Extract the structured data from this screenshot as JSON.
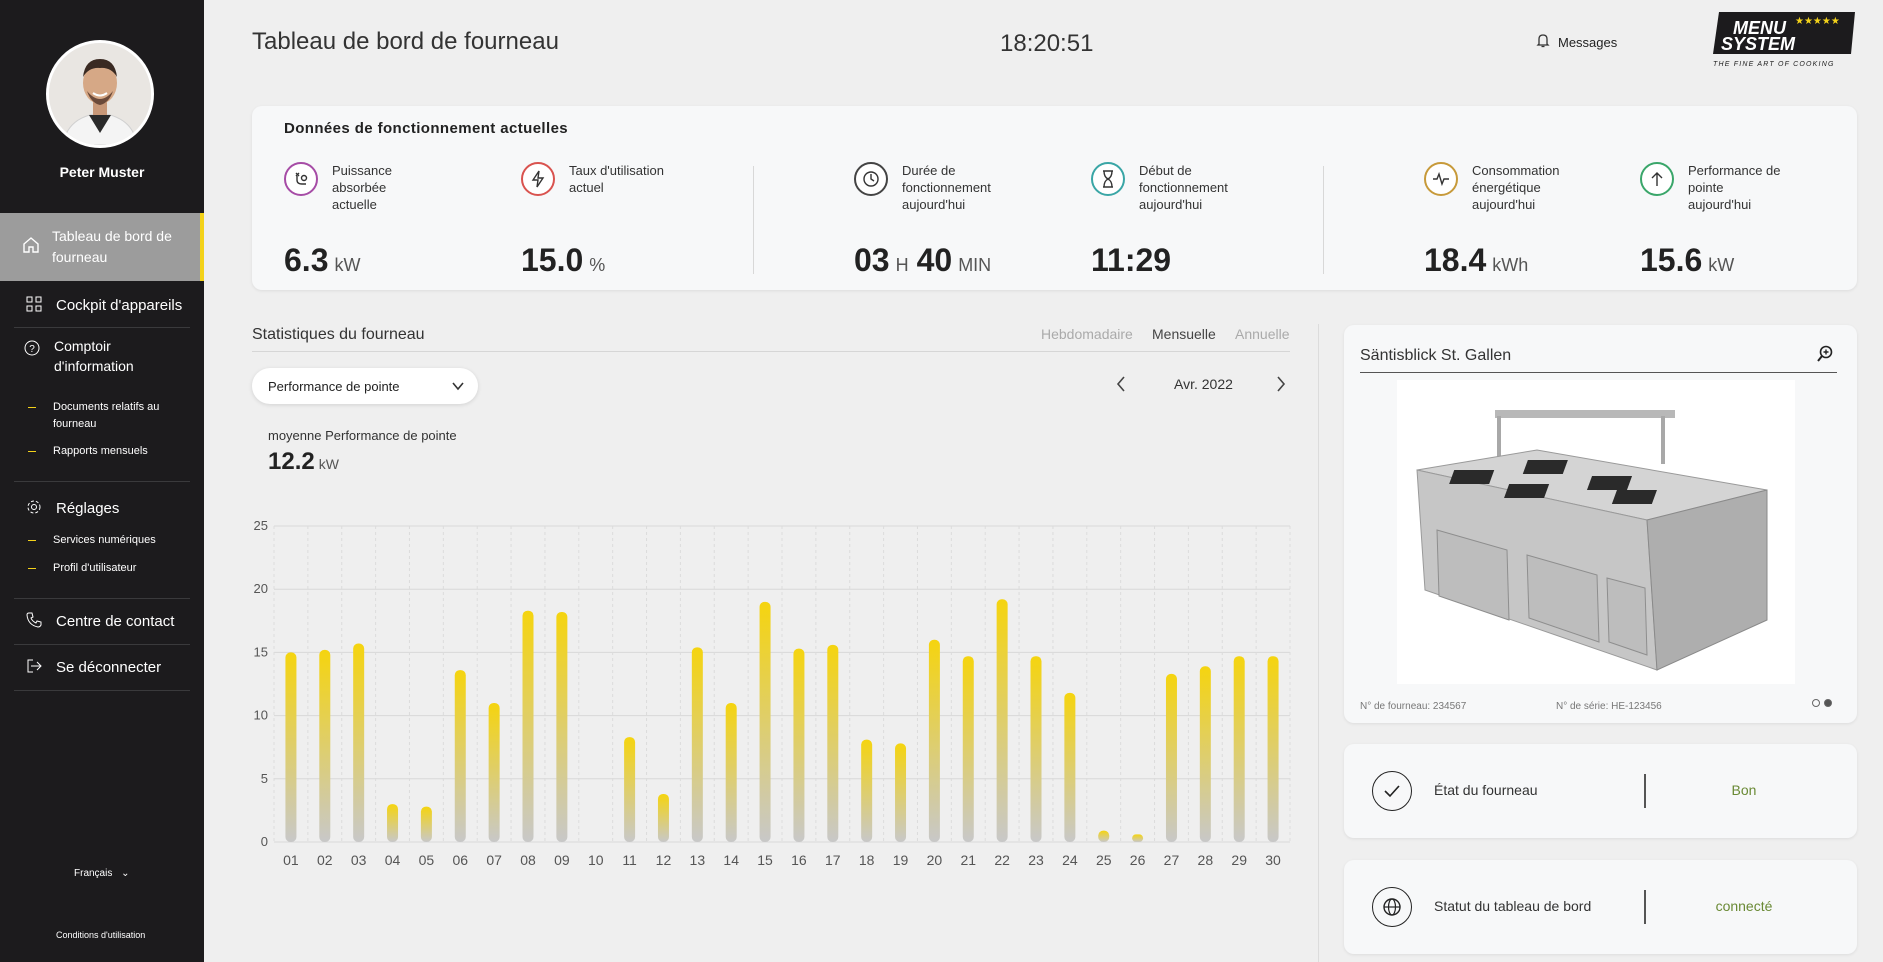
{
  "sidebar": {
    "user_name": "Peter Muster",
    "active_item": {
      "label": "Tableau de bord de fourneau",
      "icon": "home-icon"
    },
    "items": [
      {
        "label": "Cockpit d'appareils",
        "icon": "grid-icon"
      },
      {
        "label": "Comptoir d'information",
        "icon": "question-icon"
      },
      {
        "label": "Réglages",
        "icon": "gear-icon"
      },
      {
        "label": "Centre de contact",
        "icon": "phone-icon"
      },
      {
        "label": "Se déconnecter",
        "icon": "logout-icon"
      }
    ],
    "info_sub": [
      "Documents relatifs au fourneau",
      "Rapports mensuels"
    ],
    "settings_sub": [
      "Services numériques",
      "Profil d'utilisateur"
    ],
    "language": "Français",
    "terms": "Conditions d'utilisation"
  },
  "header": {
    "title": "Tableau de bord de fourneau",
    "clock": "18:20:51",
    "messages": "Messages",
    "logo_line1": "MENU",
    "logo_line2": "SYSTEM",
    "logo_tagline": "THE FINE ART OF COOKING",
    "logo_stars": "★★★★★"
  },
  "operating": {
    "title": "Données de fonctionnement actuelles",
    "metrics": [
      {
        "label": "Puissance absorbée actuelle",
        "value": "6.3",
        "unit": "kW",
        "icon": "power-plug-icon",
        "color": "#a64ca6"
      },
      {
        "label": "Taux d'utilisation actuel",
        "value": "15.0",
        "unit": "%",
        "icon": "lightning-icon",
        "color": "#d9534f"
      },
      {
        "label": "Durée de fonctionnement aujourd'hui",
        "hours": "03",
        "hours_unit": "H",
        "minutes": "40",
        "minutes_unit": "MIN",
        "icon": "clock-icon",
        "color": "#444444"
      },
      {
        "label": "Début de fonctionnement aujourd'hui",
        "value": "11:29",
        "icon": "hourglass-icon",
        "color": "#3aa6a6"
      },
      {
        "label": "Consommation énergétique aujourd'hui",
        "value": "18.4",
        "unit": "kWh",
        "icon": "pulse-icon",
        "color": "#c79a3a"
      },
      {
        "label": "Performance de pointe aujourd'hui",
        "value": "15.6",
        "unit": "kW",
        "icon": "arrow-up-icon",
        "color": "#3aa66a"
      }
    ]
  },
  "stats": {
    "title": "Statistiques du fourneau",
    "periods": [
      "Hebdomadaire",
      "Mensuelle",
      "Annuelle"
    ],
    "active_period": "Mensuelle",
    "dropdown": "Performance de pointe",
    "month": "Avr. 2022",
    "avg_label": "moyenne Performance de pointe",
    "avg_value": "12.2",
    "avg_unit": "kW"
  },
  "chart_data": {
    "type": "bar",
    "title": "",
    "xlabel": "",
    "ylabel": "",
    "ylim": [
      0,
      25
    ],
    "yticks": [
      0,
      5,
      10,
      15,
      20,
      25
    ],
    "grid": true,
    "categories": [
      "01",
      "02",
      "03",
      "04",
      "05",
      "06",
      "07",
      "08",
      "09",
      "10",
      "11",
      "12",
      "13",
      "14",
      "15",
      "16",
      "17",
      "18",
      "19",
      "20",
      "21",
      "22",
      "23",
      "24",
      "25",
      "26",
      "27",
      "28",
      "29",
      "30"
    ],
    "values": [
      15.0,
      15.2,
      15.7,
      3.0,
      2.8,
      13.6,
      11.0,
      18.3,
      18.2,
      0,
      8.3,
      3.8,
      15.4,
      11.0,
      19.0,
      15.3,
      15.6,
      8.1,
      7.8,
      16.0,
      14.7,
      19.2,
      14.7,
      11.8,
      0.9,
      0.6,
      13.3,
      13.9,
      14.7,
      14.7
    ],
    "bar_color_top": "#f5d40f",
    "bar_color_bottom": "#c8c8c8"
  },
  "oven": {
    "name": "Säntisblick St. Gallen",
    "oven_number": "N° de fourneau: 234567",
    "serial_number": "N° de série: HE-123456"
  },
  "status": [
    {
      "label": "État du fourneau",
      "value": "Bon",
      "icon": "check-icon"
    },
    {
      "label": "Statut du tableau de bord",
      "value": "connecté",
      "icon": "globe-icon"
    }
  ]
}
